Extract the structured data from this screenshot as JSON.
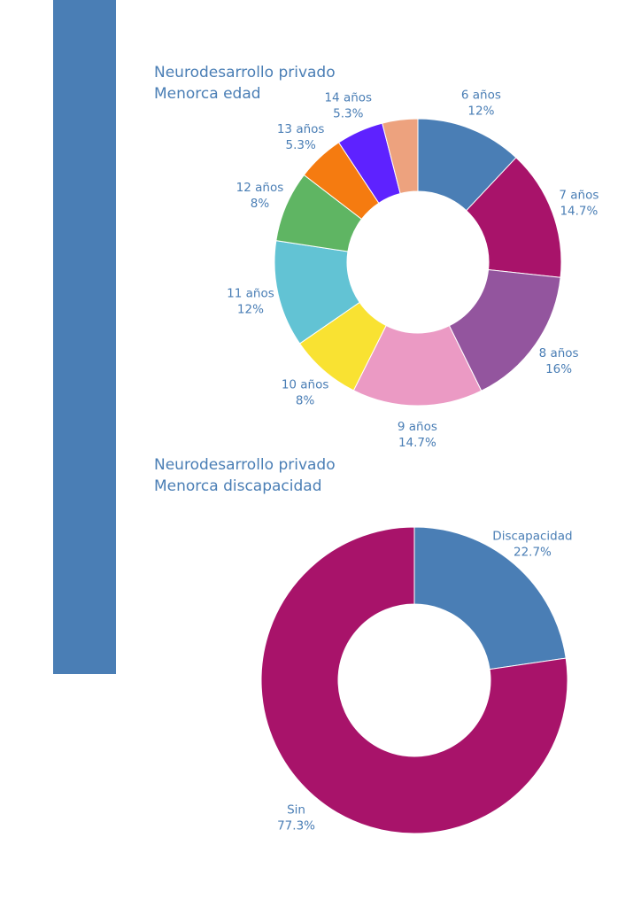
{
  "colors": {
    "accent": "#4a7eb5",
    "text": "#4a7eb5"
  },
  "chart_data": [
    {
      "type": "pie",
      "donut": true,
      "title": [
        "Neurodesarrollo privado",
        "Menorca edad"
      ],
      "slices": [
        {
          "label": "6 años",
          "value": 12,
          "text": "12%",
          "color": "#4a7eb5"
        },
        {
          "label": "7 años",
          "value": 14.7,
          "text": "14.7%",
          "color": "#a8136a"
        },
        {
          "label": "8 años",
          "value": 16,
          "text": "16%",
          "color": "#93559e"
        },
        {
          "label": "9 años",
          "value": 14.7,
          "text": "14.7%",
          "color": "#eb9ac4"
        },
        {
          "label": "10 años",
          "value": 8,
          "text": "8%",
          "color": "#f9e232"
        },
        {
          "label": "11 años",
          "value": 12,
          "text": "12%",
          "color": "#62c3d4"
        },
        {
          "label": "12 años",
          "value": 8,
          "text": "8%",
          "color": "#5fb563"
        },
        {
          "label": "13 años",
          "value": 5.3,
          "text": "5.3%",
          "color": "#f57b10"
        },
        {
          "label": "14 años",
          "value": 5.3,
          "text": "5.3%",
          "color": "#5e22ff"
        },
        {
          "label": "",
          "value": 4,
          "text": "",
          "color": "#eda27e"
        }
      ]
    },
    {
      "type": "pie",
      "donut": true,
      "title": [
        "Neurodesarrollo privado",
        "Menorca discapacidad"
      ],
      "slices": [
        {
          "label": "Discapacidad",
          "value": 22.7,
          "text": "22.7%",
          "color": "#4a7eb5"
        },
        {
          "label": "Sin",
          "value": 77.3,
          "text": "77.3%",
          "color": "#a8136a"
        }
      ]
    }
  ]
}
